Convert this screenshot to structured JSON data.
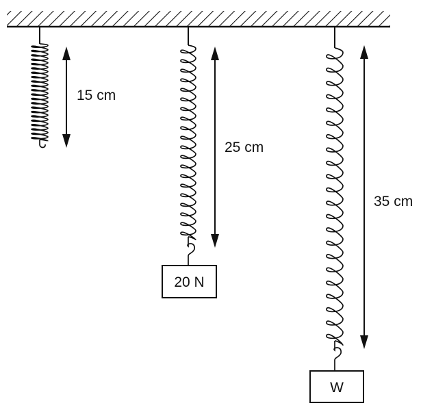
{
  "springs": [
    {
      "length_label": "15 cm",
      "weight_label": ""
    },
    {
      "length_label": "25 cm",
      "weight_label": "20 N"
    },
    {
      "length_label": "35 cm",
      "weight_label": "W"
    }
  ],
  "colors": {
    "line": "#111111",
    "background": "#ffffff"
  }
}
